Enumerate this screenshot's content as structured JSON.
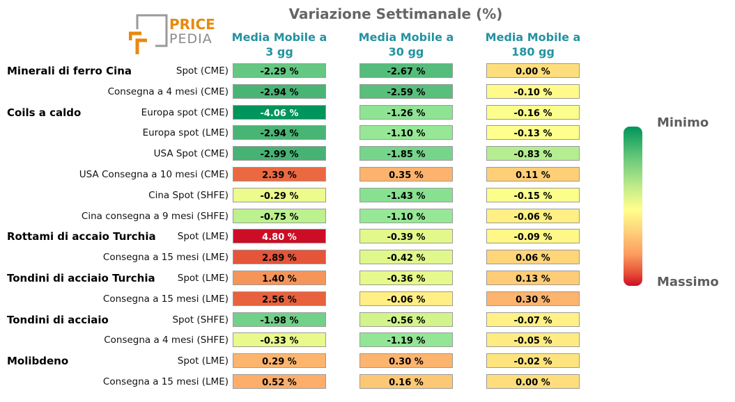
{
  "chart_data": {
    "type": "heatmap",
    "title": "Variazione Settimanale (%)",
    "columns": [
      "Media Mobile a\n3 gg",
      "Media Mobile a\n30 gg",
      "Media Mobile a\n180 gg"
    ],
    "groups": [
      {
        "name": "Minerali di ferro Cina",
        "first_row": 0
      },
      {
        "name": "Coils a caldo",
        "first_row": 2
      },
      {
        "name": "Rottami di accaio Turchia",
        "first_row": 8
      },
      {
        "name": "Tondini di acciaio Turchia",
        "first_row": 10
      },
      {
        "name": "Tondini di acciaio",
        "first_row": 12
      },
      {
        "name": "Molibdeno",
        "first_row": 14
      }
    ],
    "rows": [
      {
        "label": "Spot (CME)",
        "values": [
          -2.29,
          -2.67,
          0.0
        ]
      },
      {
        "label": "Consegna a 4 mesi (CME)",
        "values": [
          -2.94,
          -2.59,
          -0.1
        ]
      },
      {
        "label": "Europa spot (CME)",
        "values": [
          -4.06,
          -1.26,
          -0.16
        ]
      },
      {
        "label": "Europa spot (LME)",
        "values": [
          -2.94,
          -1.1,
          -0.13
        ]
      },
      {
        "label": "USA Spot (CME)",
        "values": [
          -2.99,
          -1.85,
          -0.83
        ]
      },
      {
        "label": "USA Consegna a 10 mesi (CME)",
        "values": [
          2.39,
          0.35,
          0.11
        ]
      },
      {
        "label": "Cina Spot (SHFE)",
        "values": [
          -0.29,
          -1.43,
          -0.15
        ]
      },
      {
        "label": "Cina consegna a 9 mesi (SHFE)",
        "values": [
          -0.75,
          -1.1,
          -0.06
        ]
      },
      {
        "label": "Spot (LME)",
        "values": [
          4.8,
          -0.39,
          -0.09
        ]
      },
      {
        "label": "Consegna a 15 mesi (LME)",
        "values": [
          2.89,
          -0.42,
          0.06
        ]
      },
      {
        "label": "Spot (LME)",
        "values": [
          1.4,
          -0.36,
          0.13
        ]
      },
      {
        "label": "Consegna a 15 mesi (LME)",
        "values": [
          2.56,
          -0.06,
          0.3
        ]
      },
      {
        "label": "Spot (SHFE)",
        "values": [
          -1.98,
          -0.56,
          -0.07
        ]
      },
      {
        "label": "Consegna a 4 mesi (SHFE)",
        "values": [
          -0.33,
          -1.19,
          -0.05
        ]
      },
      {
        "label": "Spot (LME)",
        "values": [
          0.29,
          0.3,
          -0.02
        ]
      },
      {
        "label": "Consegna a 15 mesi (LME)",
        "values": [
          0.52,
          0.16,
          0.0
        ]
      }
    ],
    "value_suffix": " %",
    "legend": {
      "top_label": "Minimo",
      "bottom_label": "Massimo",
      "placement": "right"
    }
  },
  "logo": {
    "line1": "PRICE",
    "line2": "PEDIA"
  },
  "colors": {
    "title": "#666666",
    "column_header": "#2393a0",
    "scale_min": "#00955a",
    "scale_mid": "#ffff8c",
    "scale_max": "#cc0d25"
  }
}
